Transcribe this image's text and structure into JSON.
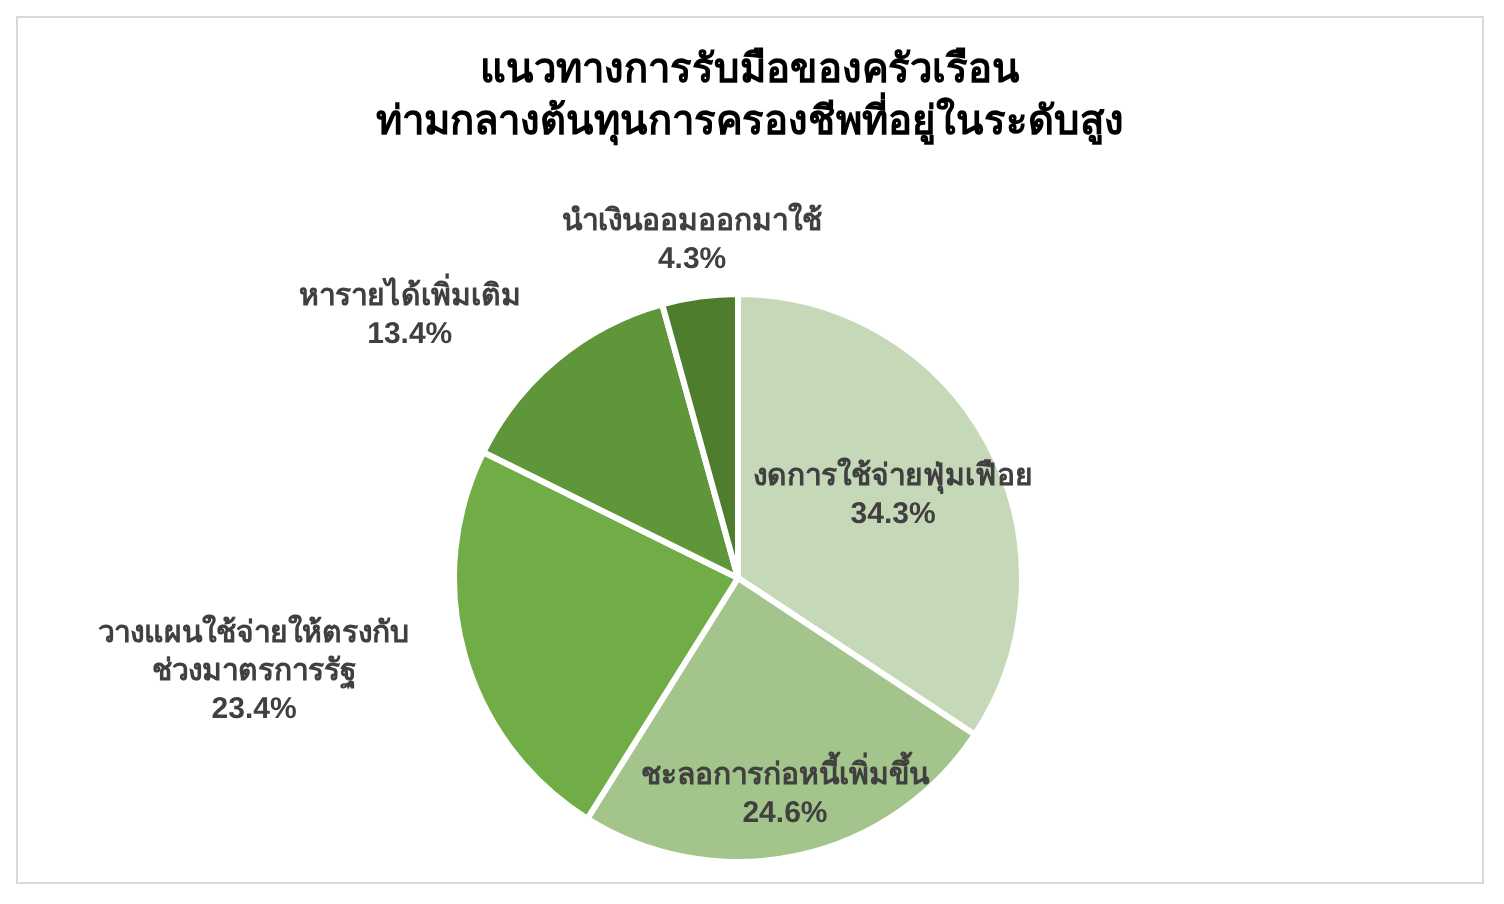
{
  "chart_data": {
    "type": "pie",
    "title": "แนวทางการรับมือของครัวเรือน\nท่ามกลางต้นทุนการครองชีพที่อยู่ในระดับสูง",
    "categories": [
      "งดการใช้จ่ายฟุ่มเฟือย",
      "ชะลอการก่อหนี้เพิ่มขึ้น",
      "วางแผนใช้จ่ายให้ตรงกับช่วงมาตรการรัฐ",
      "หารายได้เพิ่มเติม",
      "นำเงินออมออกมาใช้"
    ],
    "values": [
      34.3,
      24.6,
      23.4,
      13.4,
      4.3
    ],
    "value_labels": [
      "34.3%",
      "24.6%",
      "23.4%",
      "13.4%",
      "4.3%"
    ],
    "colors": [
      "#c5d9b8",
      "#a3c48b",
      "#70ad47",
      "#5f9639",
      "#4e7d2e"
    ]
  }
}
